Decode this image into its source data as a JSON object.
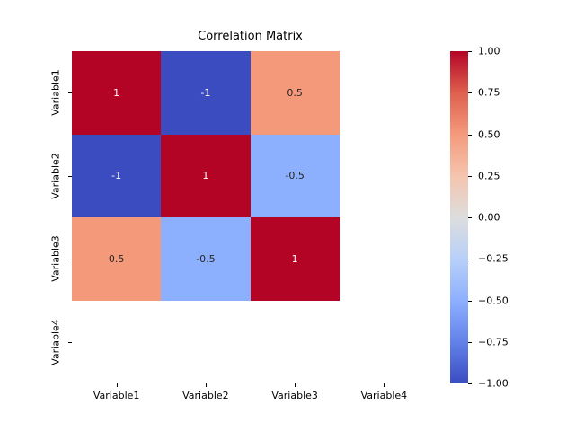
{
  "title": "Correlation Matrix",
  "colors": {
    "background": "#ffffff",
    "annot_light": "#ffffff",
    "annot_dark": "#262626",
    "tick": "#000000"
  },
  "chart_data": {
    "type": "heatmap",
    "title": "Correlation Matrix",
    "colormap": "coolwarm",
    "vmin": -1,
    "vmax": 1,
    "x_categories": [
      "Variable1",
      "Variable2",
      "Variable3",
      "Variable4"
    ],
    "y_categories": [
      "Variable1",
      "Variable2",
      "Variable3",
      "Variable4"
    ],
    "matrix": [
      [
        1,
        -1,
        0.5,
        null
      ],
      [
        -1,
        1,
        -0.5,
        null
      ],
      [
        0.5,
        -0.5,
        1,
        null
      ],
      [
        null,
        null,
        null,
        null
      ]
    ],
    "annotations": [
      [
        "1",
        "-1",
        "0.5"
      ],
      [
        "-1",
        "1",
        "-0.5"
      ],
      [
        "0.5",
        "-0.5",
        "1"
      ]
    ],
    "cell_colors": [
      [
        "#b40426",
        "#3b4cc0",
        "#f49a7b"
      ],
      [
        "#3b4cc0",
        "#b40426",
        "#8db0fe"
      ],
      [
        "#f49a7b",
        "#8db0fe",
        "#b40426"
      ]
    ],
    "colorbar": {
      "tick_labels": [
        "1.00",
        "0.75",
        "0.50",
        "0.25",
        "0.00",
        "−0.25",
        "−0.50",
        "−0.75",
        "−1.00"
      ],
      "tick_values": [
        1.0,
        0.75,
        0.5,
        0.25,
        0.0,
        -0.25,
        -0.5,
        -0.75,
        -1.0
      ],
      "gradient_stops": [
        {
          "pos": 0.0,
          "color": "#3b4cc0"
        },
        {
          "pos": 0.125,
          "color": "#6282ea"
        },
        {
          "pos": 0.25,
          "color": "#8db0fe"
        },
        {
          "pos": 0.375,
          "color": "#b8d0f9"
        },
        {
          "pos": 0.5,
          "color": "#dddddd"
        },
        {
          "pos": 0.625,
          "color": "#f5c4ad"
        },
        {
          "pos": 0.75,
          "color": "#f49a7b"
        },
        {
          "pos": 0.875,
          "color": "#de604d"
        },
        {
          "pos": 1.0,
          "color": "#b40426"
        }
      ]
    }
  }
}
